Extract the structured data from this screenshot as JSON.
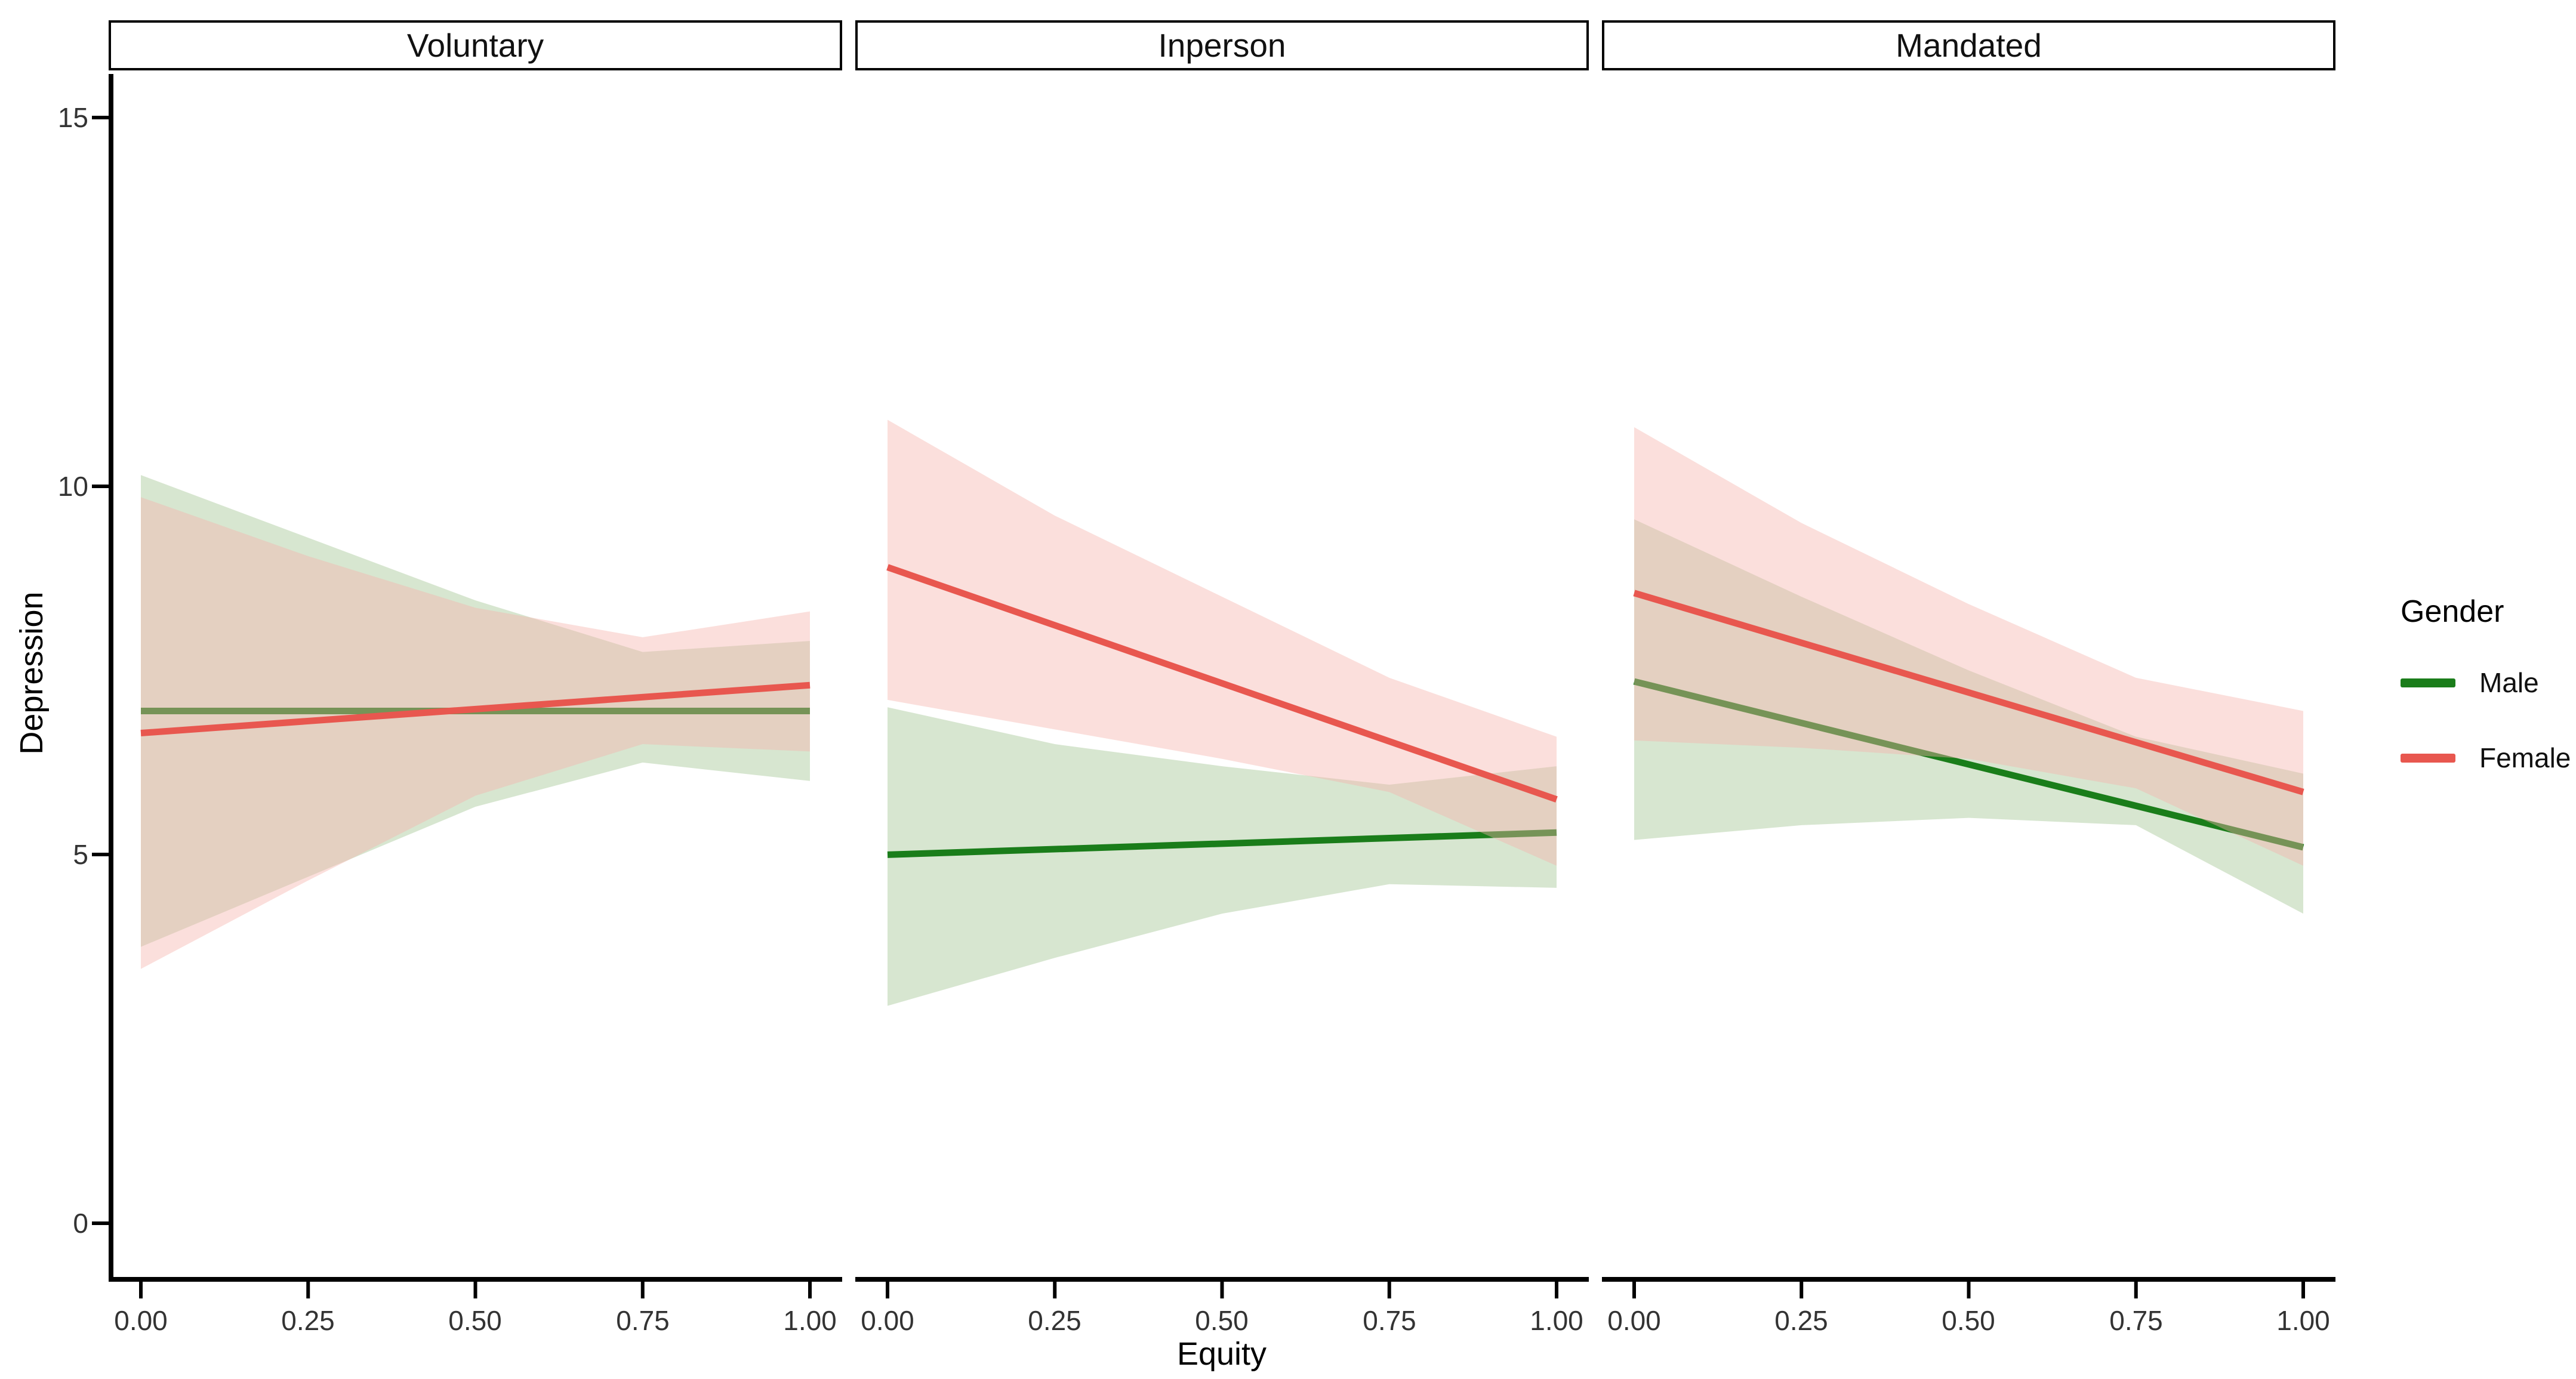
{
  "chart_data": {
    "type": "line",
    "title": "",
    "xlabel": "Equity",
    "ylabel": "Depression",
    "facets": [
      "Voluntary",
      "Inperson",
      "Mandated"
    ],
    "x_ticks": [
      0,
      0.25,
      0.5,
      0.75,
      1
    ],
    "x_tick_labels": [
      "0.00",
      "0.25",
      "0.50",
      "0.75",
      "1.00"
    ],
    "y_ticks": [
      15,
      10,
      5,
      0
    ],
    "y_tick_labels": [
      "15",
      "10",
      "5",
      "0"
    ],
    "xlim": [
      0,
      1
    ],
    "ylim": [
      0,
      15
    ],
    "grid": "off",
    "legend_position": "right",
    "panels": [
      {
        "title": "Voluntary",
        "series": [
          {
            "name": "Male",
            "x": [
              0,
              1
            ],
            "y": [
              6.95,
              6.95
            ],
            "ribbon_x": [
              0,
              0.25,
              0.5,
              0.75,
              1
            ],
            "ribbon_upper": [
              10.15,
              9.3,
              8.45,
              7.75,
              7.9
            ],
            "ribbon_lower": [
              3.75,
              4.7,
              5.65,
              6.25,
              6.0
            ]
          },
          {
            "name": "Female",
            "x": [
              0,
              1
            ],
            "y": [
              6.65,
              7.3
            ],
            "ribbon_x": [
              0,
              0.25,
              0.5,
              0.75,
              1
            ],
            "ribbon_upper": [
              9.85,
              9.05,
              8.35,
              7.95,
              8.3
            ],
            "ribbon_lower": [
              3.45,
              4.65,
              5.8,
              6.5,
              6.4
            ]
          }
        ]
      },
      {
        "title": "Inperson",
        "series": [
          {
            "name": "Male",
            "x": [
              0,
              1
            ],
            "y": [
              5.0,
              5.3
            ],
            "ribbon_x": [
              0,
              0.25,
              0.5,
              0.75,
              1
            ],
            "ribbon_upper": [
              7.0,
              6.5,
              6.2,
              5.95,
              6.2
            ],
            "ribbon_lower": [
              2.95,
              3.6,
              4.2,
              4.6,
              4.55
            ]
          },
          {
            "name": "Female",
            "x": [
              0,
              1
            ],
            "y": [
              8.9,
              5.75
            ],
            "ribbon_x": [
              0,
              0.25,
              0.5,
              0.75,
              1
            ],
            "ribbon_upper": [
              10.9,
              9.6,
              8.5,
              7.4,
              6.6
            ],
            "ribbon_lower": [
              7.1,
              6.7,
              6.3,
              5.85,
              4.85
            ]
          }
        ]
      },
      {
        "title": "Mandated",
        "series": [
          {
            "name": "Male",
            "x": [
              0,
              1
            ],
            "y": [
              7.35,
              5.1
            ],
            "ribbon_x": [
              0,
              0.25,
              0.5,
              0.75,
              1
            ],
            "ribbon_upper": [
              9.55,
              8.5,
              7.5,
              6.6,
              6.1
            ],
            "ribbon_lower": [
              5.2,
              5.4,
              5.5,
              5.4,
              4.2
            ]
          },
          {
            "name": "Female",
            "x": [
              0,
              1
            ],
            "y": [
              8.55,
              5.85
            ],
            "ribbon_x": [
              0,
              0.25,
              0.5,
              0.75,
              1
            ],
            "ribbon_upper": [
              10.8,
              9.5,
              8.4,
              7.4,
              6.95
            ],
            "ribbon_lower": [
              6.55,
              6.45,
              6.3,
              5.9,
              4.85
            ]
          }
        ]
      }
    ]
  },
  "legend": {
    "title": "Gender",
    "entries": [
      {
        "label": "Male",
        "color": "#1a7d1a"
      },
      {
        "label": "Female",
        "color": "#e8574f"
      }
    ]
  },
  "colors": {
    "male_line": "#1a7d1a",
    "female_line": "#e8574f",
    "male_ribbon": "#a0c38f",
    "female_ribbon": "#f5b2ab",
    "ribbon_opacity": 0.42,
    "axis": "#000000",
    "tick_text": "#333333"
  }
}
